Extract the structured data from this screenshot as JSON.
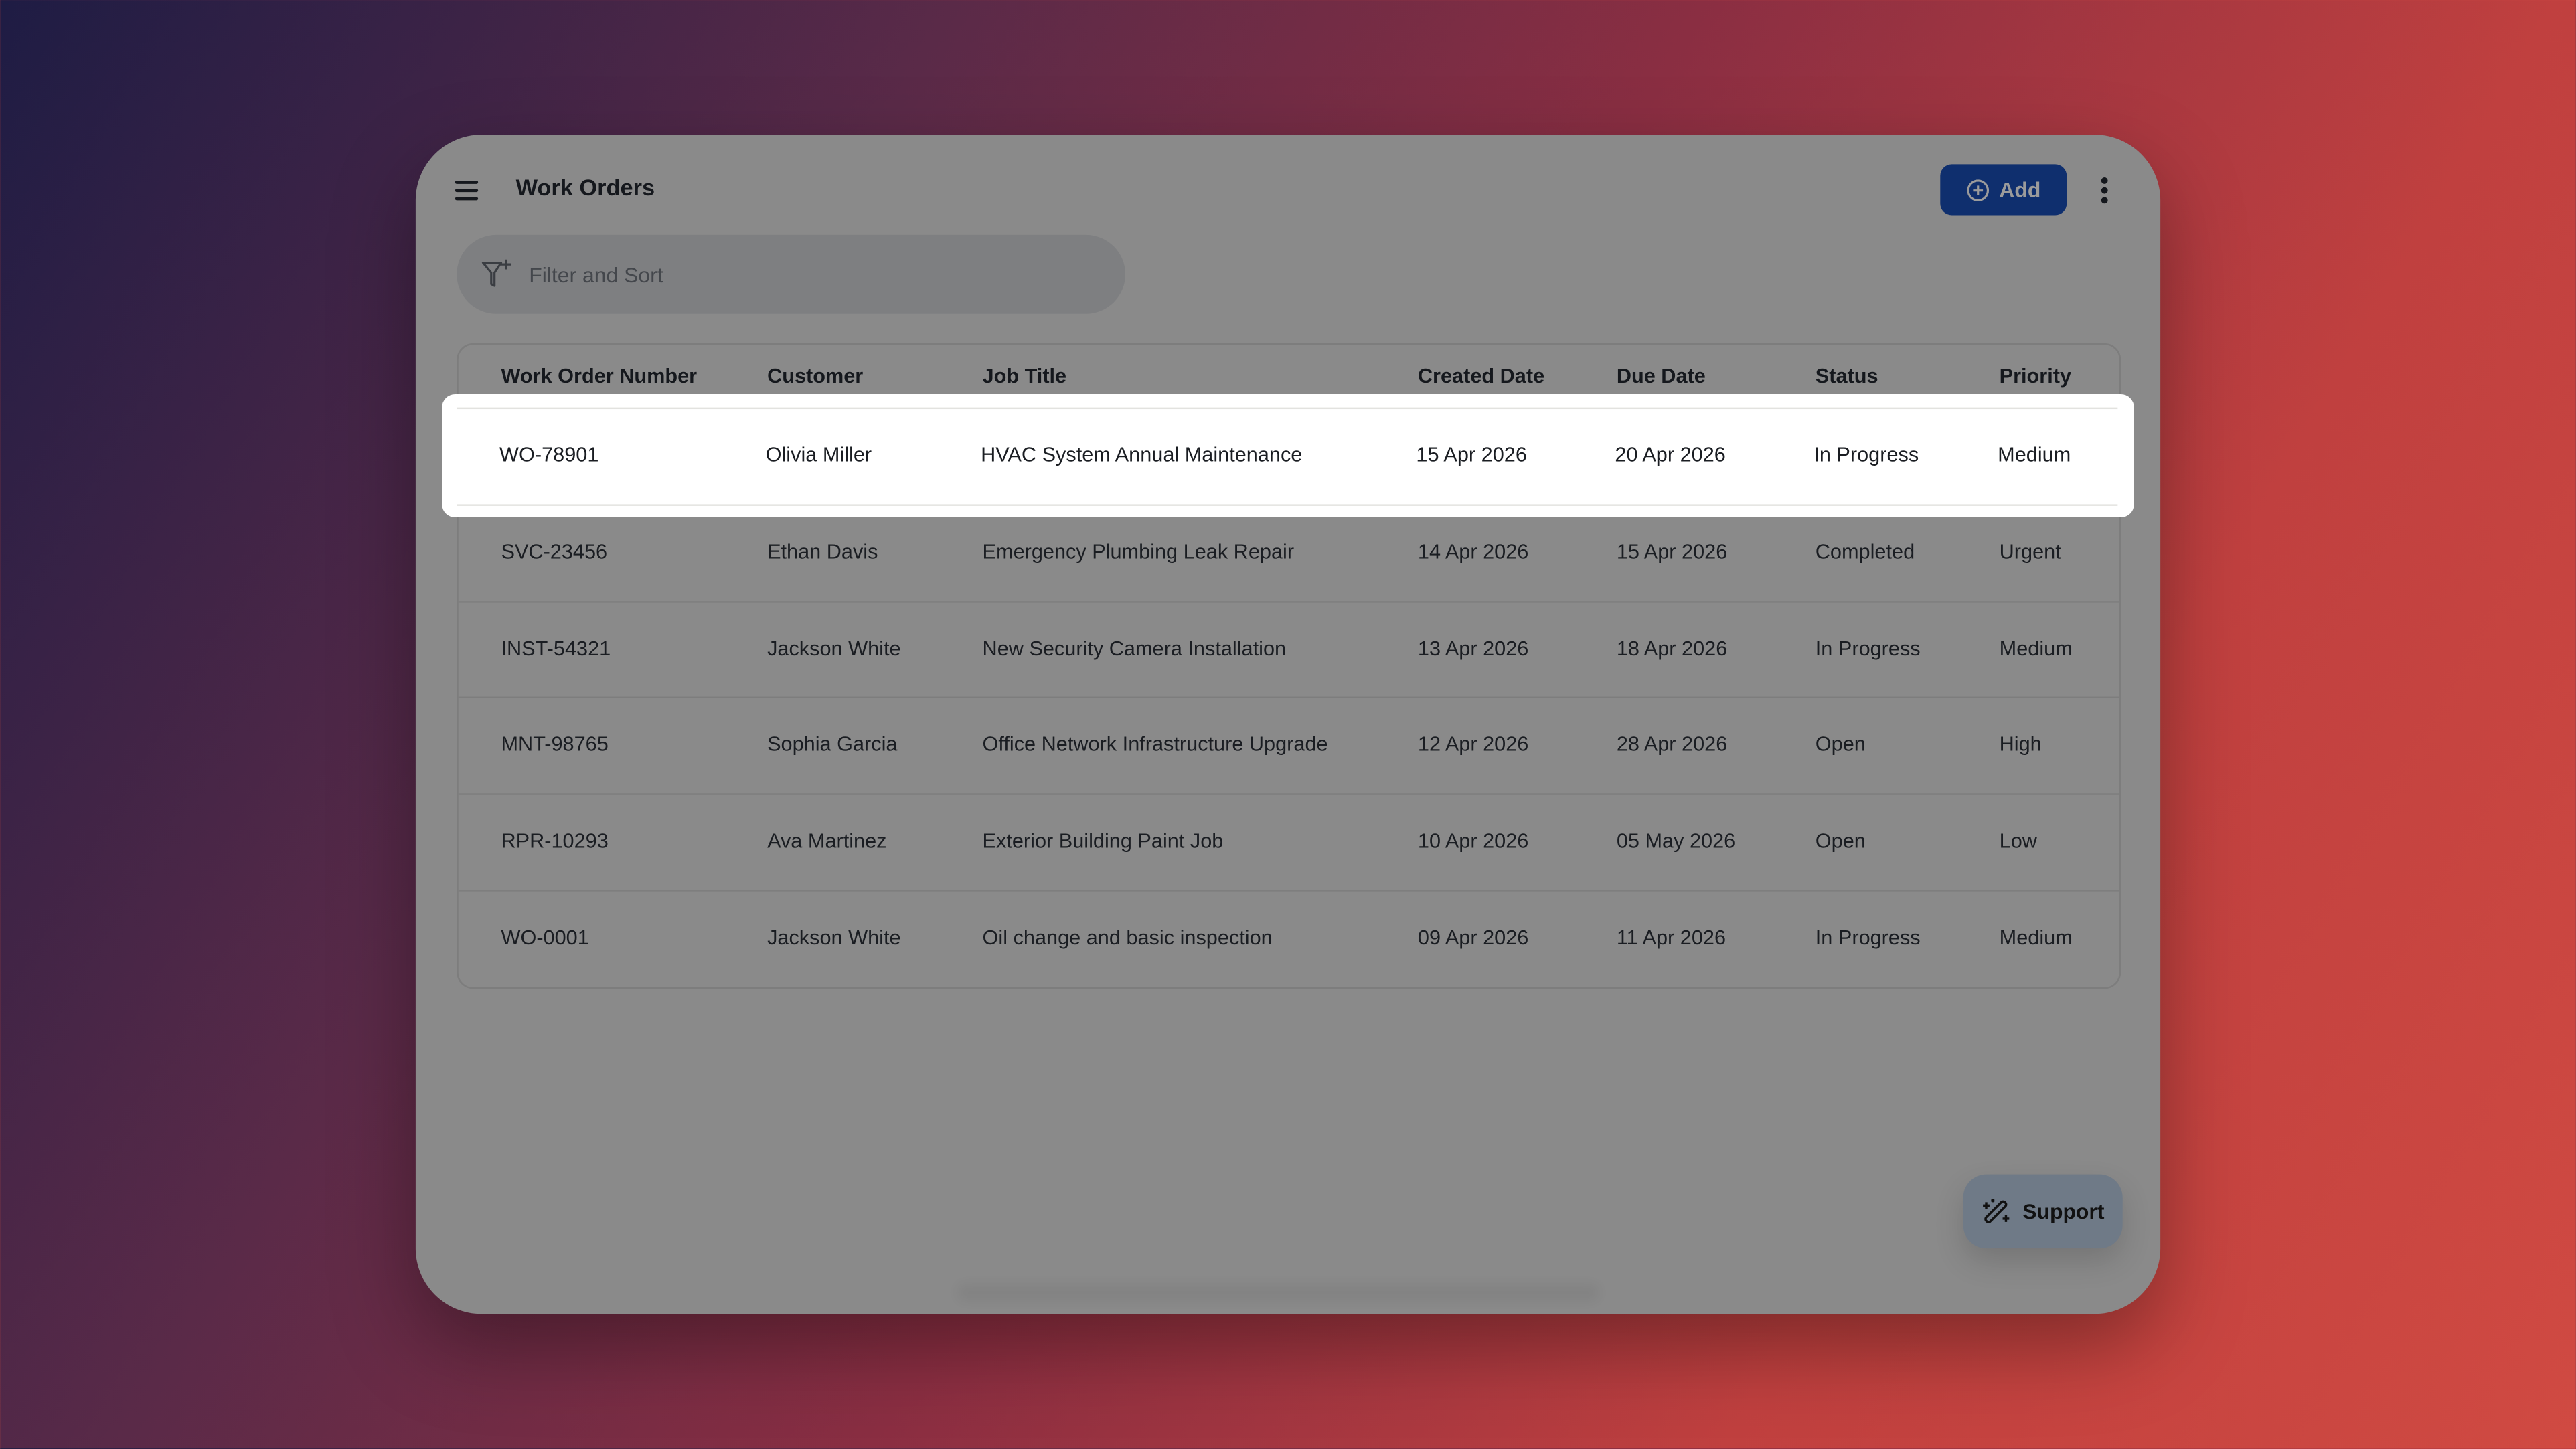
{
  "header": {
    "title": "Work Orders",
    "add_label": "Add",
    "menu_icon": "hamburger-icon",
    "more_icon": "kebab-icon",
    "accent": "#0f2f6e"
  },
  "filter": {
    "placeholder": "Filter and Sort",
    "value": ""
  },
  "table": {
    "columns": [
      "Work Order Number",
      "Customer",
      "Job Title",
      "Created Date",
      "Due Date",
      "Status",
      "Priority"
    ],
    "rows": [
      [
        "WO-78901",
        "Olivia Miller",
        "HVAC System Annual Maintenance",
        "15 Apr 2026",
        "20 Apr 2026",
        "In Progress",
        "Medium"
      ],
      [
        "SVC-23456",
        "Ethan Davis",
        "Emergency Plumbing Leak Repair",
        "14 Apr 2026",
        "15 Apr 2026",
        "Completed",
        "Urgent"
      ],
      [
        "INST-54321",
        "Jackson White",
        "New Security Camera Installation",
        "13 Apr 2026",
        "18 Apr 2026",
        "In Progress",
        "Medium"
      ],
      [
        "MNT-98765",
        "Sophia Garcia",
        "Office Network Infrastructure Upgrade",
        "12 Apr 2026",
        "28 Apr 2026",
        "Open",
        "High"
      ],
      [
        "RPR-10293",
        "Ava Martinez",
        "Exterior Building Paint Job",
        "10 Apr 2026",
        "05 May 2026",
        "Open",
        "Low"
      ],
      [
        "WO-0001",
        "Jackson White",
        "Oil change and basic inspection",
        "09 Apr 2026",
        "11 Apr 2026",
        "In Progress",
        "Medium"
      ]
    ],
    "highlighted_row": 0
  },
  "support": {
    "label": "Support",
    "icon": "magic-wand-icon"
  }
}
